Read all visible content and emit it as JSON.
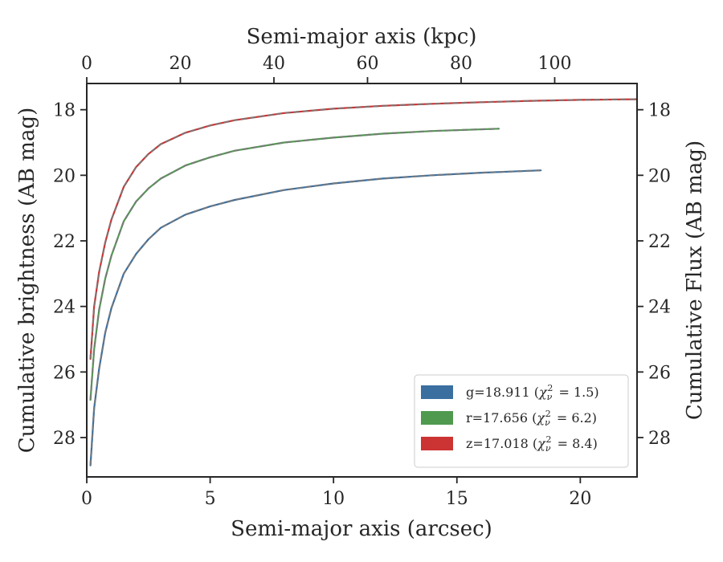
{
  "chart_data": {
    "type": "line",
    "xlabel": "Semi-major axis (arcsec)",
    "ylabel": "Cumulative brightness (AB mag)",
    "x2label": "Semi-major axis (kpc)",
    "y2label": "Cumulative Flux (AB mag)",
    "xlim": [
      0,
      22.3
    ],
    "ylim": [
      29.2,
      17.2
    ],
    "y_inverted": true,
    "x2lim": [
      0,
      117.6
    ],
    "xticks": [
      0,
      5,
      10,
      15,
      20
    ],
    "yticks": [
      18,
      20,
      22,
      24,
      26,
      28
    ],
    "x2ticks": [
      0,
      20,
      40,
      60,
      80,
      100
    ],
    "legend_position": "lower-right",
    "grid": false,
    "series": [
      {
        "name": "g",
        "color": "#3a6fa0",
        "label_prefix": "g=18.911 (",
        "chi2": "1.5",
        "x": [
          0.15,
          0.3,
          0.5,
          0.75,
          1.0,
          1.5,
          2.0,
          2.5,
          3.0,
          4.0,
          5.0,
          6.0,
          8.0,
          10.0,
          12.0,
          14.0,
          16.0,
          18.4
        ],
        "y": [
          28.85,
          27.1,
          25.9,
          24.8,
          24.05,
          23.0,
          22.4,
          21.95,
          21.6,
          21.2,
          20.95,
          20.75,
          20.45,
          20.25,
          20.1,
          20.0,
          19.92,
          19.85
        ]
      },
      {
        "name": "r",
        "color": "#4f9a4f",
        "label_prefix": "r=17.656 (",
        "chi2": "6.2",
        "x": [
          0.15,
          0.3,
          0.5,
          0.75,
          1.0,
          1.5,
          2.0,
          2.5,
          3.0,
          4.0,
          5.0,
          6.0,
          8.0,
          10.0,
          12.0,
          14.0,
          16.7
        ],
        "y": [
          26.85,
          25.3,
          24.1,
          23.15,
          22.45,
          21.4,
          20.8,
          20.4,
          20.1,
          19.7,
          19.45,
          19.25,
          19.0,
          18.85,
          18.73,
          18.65,
          18.58
        ]
      },
      {
        "name": "z",
        "color": "#cc3333",
        "label_prefix": "z=17.018 (",
        "chi2": "8.4",
        "x": [
          0.15,
          0.3,
          0.5,
          0.75,
          1.0,
          1.5,
          2.0,
          2.5,
          3.0,
          4.0,
          5.0,
          6.0,
          8.0,
          10.0,
          12.0,
          14.0,
          16.0,
          18.0,
          20.0,
          22.3
        ],
        "y": [
          25.6,
          24.0,
          22.95,
          22.05,
          21.35,
          20.35,
          19.75,
          19.35,
          19.05,
          18.7,
          18.48,
          18.32,
          18.1,
          17.97,
          17.88,
          17.82,
          17.77,
          17.73,
          17.7,
          17.68
        ]
      }
    ]
  }
}
